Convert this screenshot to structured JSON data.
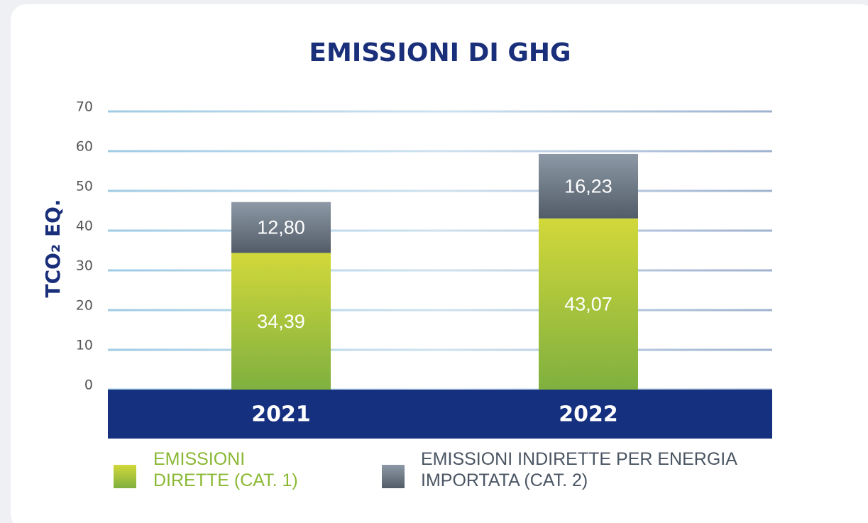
{
  "chart_data": {
    "type": "stacked-bar",
    "title": "EMISSIONI DI GHG",
    "y_label": "TCO₂ EQ.",
    "categories": [
      "2021",
      "2022"
    ],
    "series": [
      {
        "name": "EMISSIONI DIRETTE (CAT. 1)",
        "colors": [
          "#d2d83a",
          "#7fb03f"
        ],
        "text_color": "#8ab833",
        "values": [
          34.39,
          43.07
        ],
        "value_labels": [
          "34,39",
          "43,07"
        ]
      },
      {
        "name": "EMISSIONI INDIRETTE PER ENERGIA IMPORTATA (CAT. 2)",
        "colors": [
          "#8d99a6",
          "#525c68"
        ],
        "text_color": "#4a5563",
        "values": [
          12.8,
          16.23
        ],
        "value_labels": [
          "12,80",
          "16,23"
        ]
      }
    ],
    "ylim": [
      0,
      70
    ],
    "yticks": [
      0,
      10,
      20,
      30,
      40,
      50,
      60,
      70
    ],
    "grid": true
  }
}
